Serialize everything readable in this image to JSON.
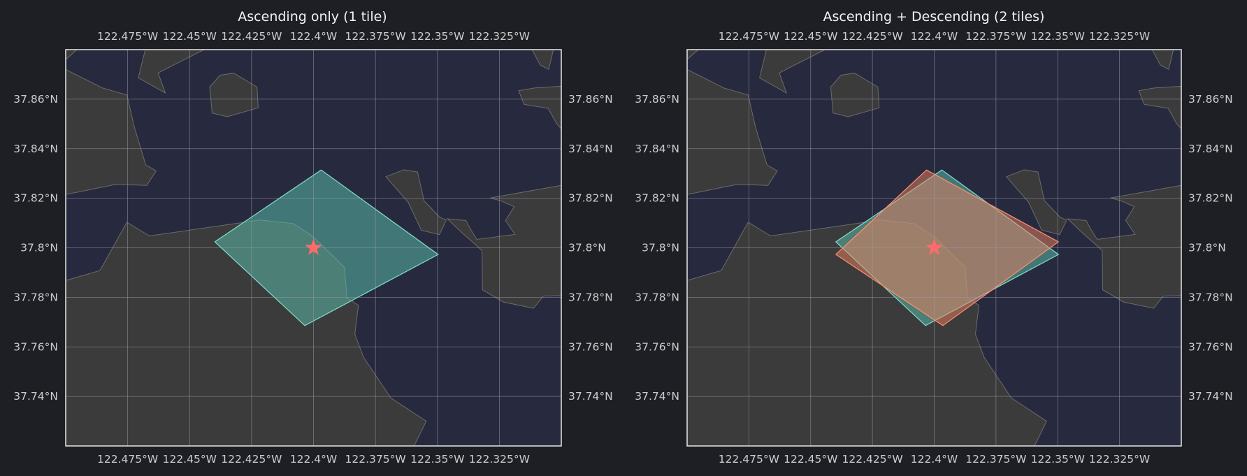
{
  "panels": [
    {
      "title": "Ascending only (1 tile)",
      "footprints": [
        {
          "name": "ascending",
          "color": "#5ec4b0",
          "stroke": "#7fe0cc",
          "corners": [
            [
              -122.3969,
              37.8314
            ],
            [
              -122.3497,
              37.7973
            ],
            [
              -122.4035,
              37.7686
            ],
            [
              -122.4398,
              37.8024
            ]
          ]
        }
      ]
    },
    {
      "title": "Ascending + Descending (2 tiles)",
      "footprints": [
        {
          "name": "ascending",
          "color": "#5ec4b0",
          "stroke": "#7fe0cc",
          "corners": [
            [
              -122.3969,
              37.8314
            ],
            [
              -122.3497,
              37.7973
            ],
            [
              -122.4035,
              37.7686
            ],
            [
              -122.4398,
              37.8024
            ]
          ]
        },
        {
          "name": "descending",
          "color": "#f08060",
          "stroke": "#ff9070",
          "corners": [
            [
              -122.4031,
              37.8314
            ],
            [
              -122.3497,
              37.8024
            ],
            [
              -122.3965,
              37.7686
            ],
            [
              -122.4398,
              37.7973
            ]
          ]
        }
      ]
    }
  ],
  "map": {
    "extent": {
      "lon": [
        -122.5,
        -122.3
      ],
      "lat": [
        37.72,
        37.88
      ]
    },
    "x_ticks": [
      -122.475,
      -122.45,
      -122.425,
      -122.4,
      -122.375,
      -122.35,
      -122.325
    ],
    "x_tick_labels": [
      "122.475°W",
      "122.45°W",
      "122.425°W",
      "122.4°W",
      "122.375°W",
      "122.35°W",
      "122.325°W"
    ],
    "y_ticks": [
      37.74,
      37.76,
      37.78,
      37.8,
      37.82,
      37.84,
      37.86
    ],
    "y_tick_labels": [
      "37.74°N",
      "37.76°N",
      "37.78°N",
      "37.8°N",
      "37.82°N",
      "37.84°N",
      "37.86°N"
    ],
    "grid": true,
    "target": {
      "lon": -122.4,
      "lat": 37.8,
      "symbol": "star",
      "color": "#ff6b6b"
    },
    "colors": {
      "water": "#272a3e",
      "land": "#3b3b3b",
      "land_edge": "#6b6b6b",
      "gridline": "#9a9aa6",
      "frame": "#e8e8e8",
      "text": "#cccccc",
      "title": "#f2f2f2",
      "background": "#1e1f24"
    },
    "land_polygons": [
      [
        [
          -122.5,
          37.72
        ],
        [
          -122.5,
          37.7868
        ],
        [
          -122.4862,
          37.7908
        ],
        [
          -122.4753,
          37.8103
        ],
        [
          -122.4662,
          37.8048
        ],
        [
          -122.4217,
          37.8112
        ],
        [
          -122.4082,
          37.8098
        ],
        [
          -122.4004,
          37.8047
        ],
        [
          -122.3875,
          37.7921
        ],
        [
          -122.3865,
          37.7797
        ],
        [
          -122.3819,
          37.7768
        ],
        [
          -122.3833,
          37.7651
        ],
        [
          -122.3798,
          37.7558
        ],
        [
          -122.3688,
          37.7394
        ],
        [
          -122.3545,
          37.73
        ],
        [
          -122.3594,
          37.72
        ]
      ],
      [
        [
          -122.5,
          37.872
        ],
        [
          -122.4851,
          37.8645
        ],
        [
          -122.4753,
          37.8617
        ],
        [
          -122.4723,
          37.8487
        ],
        [
          -122.4677,
          37.8335
        ],
        [
          -122.4635,
          37.831
        ],
        [
          -122.4673,
          37.8252
        ],
        [
          -122.4797,
          37.8256
        ],
        [
          -122.5,
          37.8215
        ]
      ],
      [
        [
          -122.5,
          37.876
        ],
        [
          -122.4955,
          37.88
        ],
        [
          -122.5,
          37.88
        ]
      ],
      [
        [
          -122.4679,
          37.88
        ],
        [
          -122.4707,
          37.8686
        ],
        [
          -122.4598,
          37.8625
        ],
        [
          -122.4627,
          37.8706
        ],
        [
          -122.4442,
          37.88
        ]
      ],
      [
        [
          -122.4419,
          37.8649
        ],
        [
          -122.4377,
          37.8697
        ],
        [
          -122.4322,
          37.8705
        ],
        [
          -122.4228,
          37.8649
        ],
        [
          -122.4223,
          37.8565
        ],
        [
          -122.4348,
          37.8529
        ],
        [
          -122.4409,
          37.8544
        ]
      ],
      [
        [
          -122.3708,
          37.8287
        ],
        [
          -122.3635,
          37.8315
        ],
        [
          -122.358,
          37.8306
        ],
        [
          -122.3554,
          37.819
        ],
        [
          -122.349,
          37.8123
        ],
        [
          -122.3464,
          37.8112
        ],
        [
          -122.3492,
          37.8053
        ],
        [
          -122.3565,
          37.8071
        ],
        [
          -122.3618,
          37.8184
        ]
      ],
      [
        [
          -122.3,
          37.8252
        ],
        [
          -122.3287,
          37.8201
        ],
        [
          -122.3245,
          37.819
        ],
        [
          -122.319,
          37.8166
        ],
        [
          -122.3225,
          37.811
        ],
        [
          -122.3187,
          37.8054
        ],
        [
          -122.334,
          37.8034
        ],
        [
          -122.3363,
          37.8069
        ],
        [
          -122.3385,
          37.811
        ],
        [
          -122.346,
          37.8117
        ],
        [
          -122.3402,
          37.8062
        ],
        [
          -122.332,
          37.7989
        ],
        [
          -122.3318,
          37.783
        ],
        [
          -122.3233,
          37.7781
        ],
        [
          -122.3112,
          37.7756
        ],
        [
          -122.3072,
          37.7805
        ],
        [
          -122.3,
          37.7807
        ]
      ],
      [
        [
          -122.3,
          37.8652
        ],
        [
          -122.311,
          37.8645
        ],
        [
          -122.3172,
          37.8634
        ],
        [
          -122.315,
          37.8579
        ],
        [
          -122.3053,
          37.8563
        ],
        [
          -122.302,
          37.8503
        ],
        [
          -122.3,
          37.848
        ]
      ],
      [
        [
          -122.3032,
          37.88
        ],
        [
          -122.3118,
          37.88
        ],
        [
          -122.3085,
          37.8738
        ],
        [
          -122.3051,
          37.872
        ]
      ]
    ]
  }
}
